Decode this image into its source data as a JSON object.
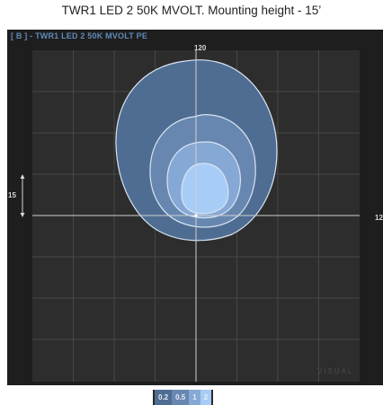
{
  "header": {
    "caption": "TWR1 LED 2 50K MVOLT. Mounting height - 15’"
  },
  "panel": {
    "title": "[ B ] - TWR1 LED 2 50K MVOLT PE",
    "top_label": "120",
    "right_label": "12",
    "left_label": "15",
    "watermark": "VISUAL"
  },
  "legend": {
    "items": [
      {
        "label": "0.2",
        "color": "#4f6d92"
      },
      {
        "label": "0.5",
        "color": "#6787b0"
      },
      {
        "label": "1",
        "color": "#86a8d4"
      },
      {
        "label": "2",
        "color": "#a7cdf6"
      }
    ]
  },
  "colors": {
    "background": "#1e1e1e",
    "plot": "#2d2d2d",
    "grid": "#464646",
    "axis": "#cfcfcf",
    "contour_outline": "#d8e4f2",
    "title": "#5f8ab8"
  }
}
